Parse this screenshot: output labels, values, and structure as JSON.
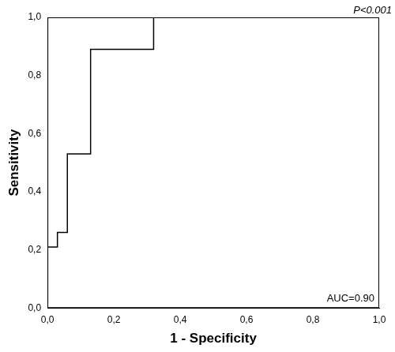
{
  "chart_data": {
    "type": "line",
    "x_label": "1 - Specificity",
    "y_label": "Sensitivity",
    "annotations": [
      "P<0.001",
      "AUC=0.90"
    ],
    "x": [
      0,
      0,
      0.03,
      0.03,
      0.06,
      0.06,
      0.13,
      0.13,
      0.32,
      0.32,
      1.0
    ],
    "values": [
      0,
      0.21,
      0.21,
      0.26,
      0.26,
      0.53,
      0.53,
      0.89,
      0.89,
      1.0,
      1.0
    ],
    "color": "#000000",
    "marker": "none",
    "line_style": "solid",
    "grid": false,
    "xlim": [
      0,
      1
    ],
    "ylim": [
      0,
      1
    ],
    "xticks": [
      {
        "value": 0,
        "label": "0,0"
      },
      {
        "value": 0.2,
        "label": "0,2"
      },
      {
        "value": 0.4,
        "label": "0,4"
      },
      {
        "value": 0.6,
        "label": "0,6"
      },
      {
        "value": 0.8,
        "label": "0,8"
      },
      {
        "value": 1,
        "label": "1,0"
      }
    ],
    "yticks": [
      {
        "value": 0,
        "label": "0,0"
      },
      {
        "value": 0.2,
        "label": "0,2"
      },
      {
        "value": 0.4,
        "label": "0,4"
      },
      {
        "value": 0.6,
        "label": "0,6"
      },
      {
        "value": 0.8,
        "label": "0,8"
      },
      {
        "value": 1,
        "label": "1,0"
      }
    ]
  }
}
